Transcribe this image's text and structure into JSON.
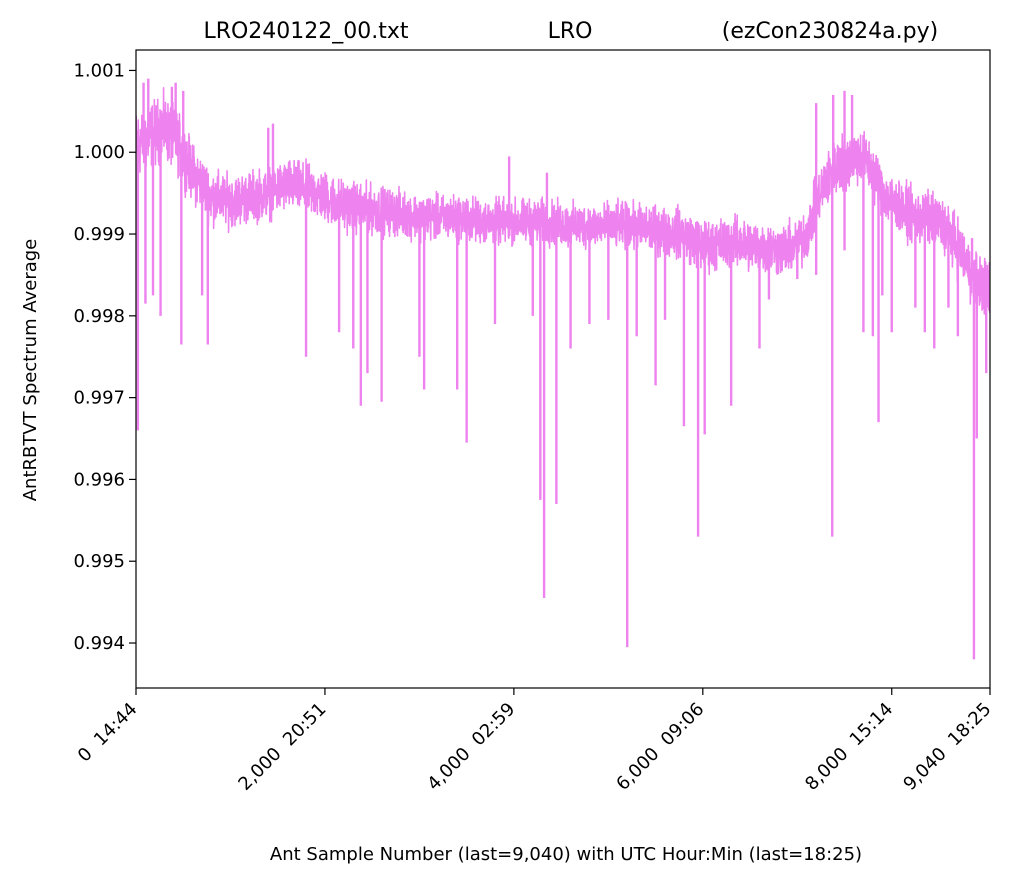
{
  "chart_data": {
    "type": "line",
    "title_parts": [
      "LRO240122_00.txt",
      "LRO",
      "(ezCon230824a.py)"
    ],
    "xlabel": "Ant Sample Number (last=9,040) with UTC Hour:Min (last=18:25)",
    "ylabel": "AntRBTVT Spectrum Average",
    "xlim": [
      0,
      9040
    ],
    "ylim": [
      0.99345,
      1.00125
    ],
    "x_ticks": [
      {
        "value": 0,
        "label": "0  14:44"
      },
      {
        "value": 2000,
        "label": "2,000  20:51"
      },
      {
        "value": 4000,
        "label": "4,000  02:59"
      },
      {
        "value": 6000,
        "label": "6,000  09:06"
      },
      {
        "value": 8000,
        "label": "8,000  15:14"
      },
      {
        "value": 9040,
        "label": "9,040  18:25"
      }
    ],
    "y_ticks": [
      {
        "value": 0.994,
        "label": "0.994"
      },
      {
        "value": 0.995,
        "label": "0.995"
      },
      {
        "value": 0.996,
        "label": "0.996"
      },
      {
        "value": 0.997,
        "label": "0.997"
      },
      {
        "value": 0.998,
        "label": "0.998"
      },
      {
        "value": 0.999,
        "label": "0.999"
      },
      {
        "value": 1.0,
        "label": "1.000"
      },
      {
        "value": 1.001,
        "label": "1.001"
      }
    ],
    "grid": false,
    "series": [
      {
        "color": "#ee82ee",
        "baseline": [
          [
            0,
            1.0001
          ],
          [
            150,
            1.0002
          ],
          [
            300,
            1.0003
          ],
          [
            450,
            1.0001
          ],
          [
            600,
            0.99975
          ],
          [
            800,
            0.99945
          ],
          [
            1000,
            0.9994
          ],
          [
            1200,
            0.99945
          ],
          [
            1400,
            0.9995
          ],
          [
            1600,
            0.9996
          ],
          [
            1800,
            0.99955
          ],
          [
            2000,
            0.99945
          ],
          [
            2200,
            0.99935
          ],
          [
            2500,
            0.9993
          ],
          [
            2800,
            0.99925
          ],
          [
            3100,
            0.9992
          ],
          [
            3400,
            0.9992
          ],
          [
            3700,
            0.99915
          ],
          [
            4000,
            0.99915
          ],
          [
            4300,
            0.99915
          ],
          [
            4600,
            0.9991
          ],
          [
            4900,
            0.9991
          ],
          [
            5200,
            0.9991
          ],
          [
            5500,
            0.99905
          ],
          [
            5800,
            0.999
          ],
          [
            6000,
            0.99885
          ],
          [
            6300,
            0.9989
          ],
          [
            6600,
            0.99885
          ],
          [
            6800,
            0.9988
          ],
          [
            7000,
            0.99885
          ],
          [
            7100,
            0.999
          ],
          [
            7200,
            0.99935
          ],
          [
            7300,
            0.99965
          ],
          [
            7450,
            0.99985
          ],
          [
            7600,
            0.99995
          ],
          [
            7700,
            0.99995
          ],
          [
            7800,
            0.99975
          ],
          [
            7950,
            0.99945
          ],
          [
            8100,
            0.9993
          ],
          [
            8250,
            0.9992
          ],
          [
            8400,
            0.9992
          ],
          [
            8550,
            0.9991
          ],
          [
            8700,
            0.99885
          ],
          [
            8850,
            0.9985
          ],
          [
            9040,
            0.9983
          ]
        ],
        "band": [
          [
            0,
            0.00055
          ],
          [
            600,
            0.00045
          ],
          [
            1000,
            0.0004
          ],
          [
            2000,
            0.0004
          ],
          [
            3000,
            0.00035
          ],
          [
            4000,
            0.00035
          ],
          [
            5000,
            0.00035
          ],
          [
            6000,
            0.0004
          ],
          [
            7000,
            0.0004
          ],
          [
            7500,
            0.00045
          ],
          [
            8000,
            0.0004
          ],
          [
            9040,
            0.00045
          ]
        ],
        "spikes": [
          [
            20,
            0.9966
          ],
          [
            100,
            0.99815
          ],
          [
            180,
            0.99825
          ],
          [
            260,
            0.998
          ],
          [
            480,
            0.99765
          ],
          [
            700,
            0.99825
          ],
          [
            760,
            0.99765
          ],
          [
            1800,
            0.9975
          ],
          [
            2150,
            0.9978
          ],
          [
            2300,
            0.9976
          ],
          [
            2380,
            0.9969
          ],
          [
            2450,
            0.9973
          ],
          [
            2600,
            0.99695
          ],
          [
            3000,
            0.9975
          ],
          [
            3050,
            0.9971
          ],
          [
            3400,
            0.9971
          ],
          [
            3500,
            0.99645
          ],
          [
            3800,
            0.9979
          ],
          [
            4200,
            0.998
          ],
          [
            4280,
            0.99575
          ],
          [
            4320,
            0.99455
          ],
          [
            4450,
            0.9957
          ],
          [
            4600,
            0.9976
          ],
          [
            4800,
            0.9979
          ],
          [
            5000,
            0.99795
          ],
          [
            5200,
            0.99395
          ],
          [
            5300,
            0.99775
          ],
          [
            5500,
            0.99715
          ],
          [
            5600,
            0.99795
          ],
          [
            5800,
            0.99665
          ],
          [
            5950,
            0.9953
          ],
          [
            6020,
            0.99655
          ],
          [
            6300,
            0.9969
          ],
          [
            6600,
            0.9976
          ],
          [
            6700,
            0.9982
          ],
          [
            7000,
            0.99845
          ],
          [
            7200,
            0.9985
          ],
          [
            7370,
            0.9953
          ],
          [
            7500,
            0.9988
          ],
          [
            7700,
            0.9978
          ],
          [
            7800,
            0.99775
          ],
          [
            7860,
            0.9967
          ],
          [
            7900,
            0.99825
          ],
          [
            8000,
            0.9978
          ],
          [
            8250,
            0.9981
          ],
          [
            8350,
            0.9978
          ],
          [
            8450,
            0.9976
          ],
          [
            8600,
            0.9981
          ],
          [
            8700,
            0.99775
          ],
          [
            8870,
            0.9938
          ],
          [
            8900,
            0.9965
          ],
          [
            9000,
            0.9973
          ]
        ],
        "peaks": [
          [
            80,
            1.00085
          ],
          [
            130,
            1.0009
          ],
          [
            380,
            1.0008
          ],
          [
            420,
            1.00085
          ],
          [
            500,
            1.00075
          ],
          [
            1400,
            1.0003
          ],
          [
            1450,
            1.00035
          ],
          [
            3950,
            0.99995
          ],
          [
            4350,
            0.99975
          ],
          [
            7200,
            1.0006
          ],
          [
            7380,
            1.0007
          ],
          [
            7500,
            1.00075
          ],
          [
            7580,
            1.0007
          ],
          [
            8850,
            0.99895
          ]
        ],
        "n_points": 9041
      }
    ]
  }
}
